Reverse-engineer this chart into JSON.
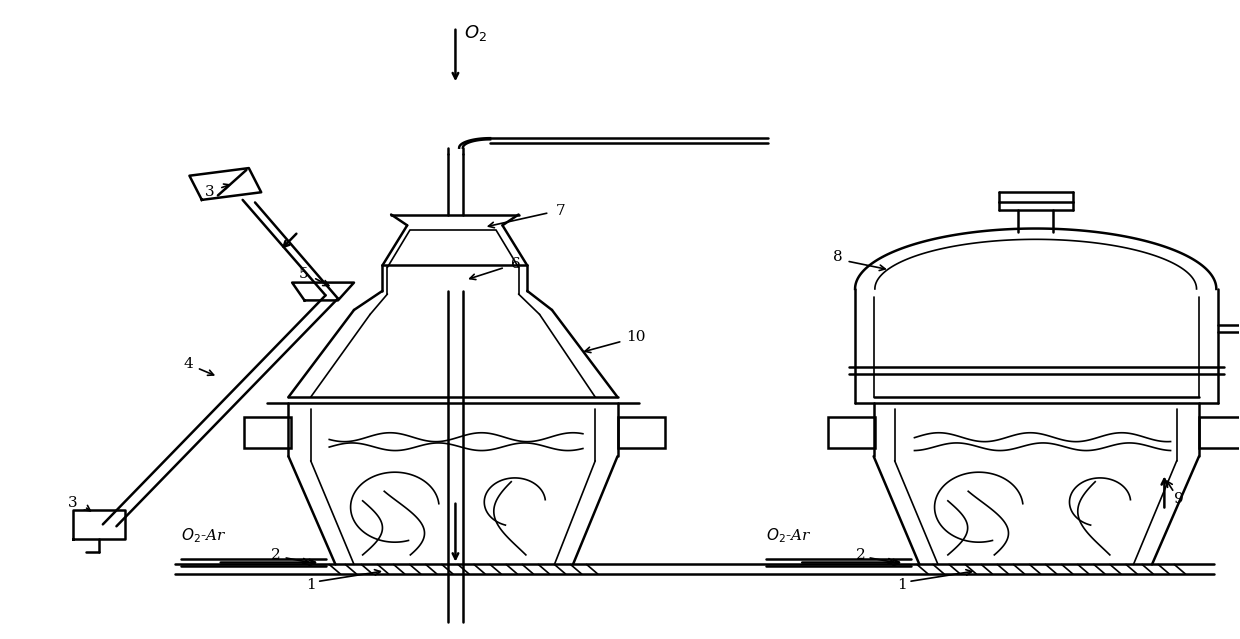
{
  "bg_color": "#ffffff",
  "line_color": "#000000",
  "lw": 1.8,
  "lw_thin": 1.2,
  "fig_width": 12.4,
  "fig_height": 6.39
}
